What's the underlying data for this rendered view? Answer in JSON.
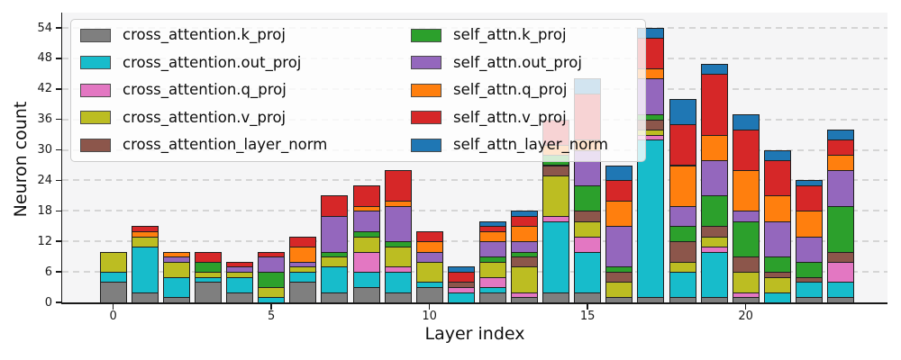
{
  "chart_data": {
    "type": "bar",
    "stacked": true,
    "xlabel": "Layer index",
    "ylabel": "Neuron count",
    "categories": [
      0,
      1,
      2,
      3,
      4,
      5,
      6,
      7,
      8,
      9,
      10,
      11,
      12,
      13,
      14,
      15,
      16,
      17,
      18,
      19,
      20,
      21,
      22,
      23
    ],
    "series": [
      {
        "name": "cross_attention.k_proj",
        "color": "#7f7f7f",
        "values": [
          4,
          2,
          1,
          4,
          2,
          0,
          4,
          2,
          3,
          2,
          3,
          0,
          2,
          1,
          2,
          2,
          1,
          1,
          1,
          1,
          1,
          0,
          1,
          1
        ]
      },
      {
        "name": "cross_attention.out_proj",
        "color": "#17bccb",
        "values": [
          2,
          9,
          4,
          1,
          3,
          1,
          2,
          5,
          3,
          4,
          1,
          2,
          1,
          0,
          14,
          8,
          0,
          31,
          5,
          9,
          0,
          2,
          3,
          3
        ]
      },
      {
        "name": "cross_attention.q_proj",
        "color": "#e377c2",
        "values": [
          0,
          0,
          0,
          0,
          0,
          0,
          0,
          0,
          4,
          1,
          0,
          1,
          2,
          1,
          1,
          3,
          0,
          1,
          0,
          1,
          1,
          0,
          0,
          4
        ]
      },
      {
        "name": "cross_attention.v_proj",
        "color": "#bcbd22",
        "values": [
          4,
          2,
          3,
          1,
          1,
          2,
          1,
          2,
          3,
          4,
          4,
          0,
          3,
          5,
          8,
          3,
          3,
          1,
          2,
          2,
          4,
          3,
          0,
          0
        ]
      },
      {
        "name": "cross_attention_layer_norm",
        "color": "#8c564b",
        "values": [
          0,
          0,
          0,
          0,
          0,
          0,
          0,
          0,
          0,
          0,
          0,
          1,
          0,
          2,
          2,
          2,
          2,
          2,
          4,
          2,
          3,
          1,
          1,
          2
        ]
      },
      {
        "name": "self_attn.k_proj",
        "color": "#2ca02c",
        "values": [
          0,
          0,
          0,
          2,
          0,
          3,
          0,
          1,
          1,
          1,
          0,
          0,
          1,
          1,
          2,
          5,
          1,
          1,
          3,
          6,
          7,
          3,
          3,
          9
        ]
      },
      {
        "name": "self_attn.out_proj",
        "color": "#9467bd",
        "values": [
          0,
          0,
          1,
          0,
          1,
          3,
          1,
          7,
          4,
          7,
          2,
          0,
          3,
          2,
          0,
          7,
          8,
          7,
          4,
          7,
          2,
          7,
          5,
          7
        ]
      },
      {
        "name": "self_attn.q_proj",
        "color": "#ff7f0e",
        "values": [
          0,
          1,
          1,
          0,
          0,
          0,
          3,
          0,
          1,
          1,
          2,
          0,
          2,
          3,
          2,
          2,
          5,
          2,
          8,
          5,
          8,
          5,
          5,
          3
        ]
      },
      {
        "name": "self_attn.v_proj",
        "color": "#d62728",
        "values": [
          0,
          1,
          0,
          2,
          1,
          1,
          2,
          4,
          4,
          6,
          2,
          2,
          1,
          2,
          5,
          9,
          4,
          6,
          8,
          12,
          8,
          7,
          5,
          3
        ]
      },
      {
        "name": "self_attn_layer_norm",
        "color": "#1f77b4",
        "values": [
          0,
          0,
          0,
          0,
          0,
          0,
          0,
          0,
          0,
          0,
          0,
          1,
          1,
          1,
          0,
          3,
          3,
          2,
          5,
          2,
          3,
          2,
          1,
          2
        ]
      }
    ],
    "yticks": [
      0,
      6,
      12,
      18,
      24,
      30,
      36,
      42,
      48,
      54
    ],
    "xticks": [
      0,
      5,
      10,
      15,
      20
    ],
    "ylim": [
      0,
      57
    ],
    "grid": "horizontal dashed",
    "legend_position": "upper left, 2 columns",
    "plot_background": "#f5f5f6",
    "gridline_color": "#d5d5d5"
  }
}
